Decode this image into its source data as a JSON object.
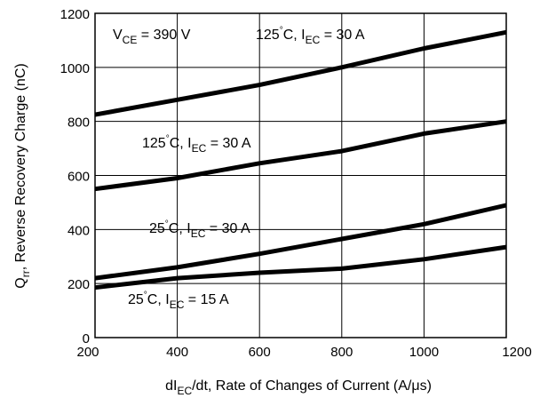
{
  "chart_data": {
    "type": "line",
    "xlabel": {
      "prefix": "dI",
      "sub": "EC",
      "suffix": "/dt, Rate of Changes of Current (A/μs)"
    },
    "ylabel": {
      "prefix": "Q",
      "sub": "rr",
      "suffix": ", Reverse Recovery Charge (nC)"
    },
    "xlim": [
      200,
      1200
    ],
    "ylim": [
      0,
      1200
    ],
    "xticks": [
      200,
      400,
      600,
      800,
      1000,
      1200
    ],
    "yticks": [
      0,
      200,
      400,
      600,
      800,
      1000,
      1200
    ],
    "grid": true,
    "condition": {
      "prefix": "V",
      "sub": "CE",
      "suffix": " = 390 V"
    },
    "series": [
      {
        "label": {
          "temp": "125",
          "deg": "°",
          "unit": "C, I",
          "sub": "EC",
          "value": " = 30 A"
        },
        "x": [
          200,
          400,
          600,
          800,
          1000,
          1200
        ],
        "y": [
          825,
          880,
          935,
          1000,
          1070,
          1130
        ]
      },
      {
        "label": {
          "temp": "125",
          "deg": "°",
          "unit": "C, I",
          "sub": "EC",
          "value": " = 30 A"
        },
        "x": [
          200,
          400,
          600,
          800,
          1000,
          1200
        ],
        "y": [
          550,
          590,
          645,
          690,
          755,
          800
        ]
      },
      {
        "label": {
          "temp": "25",
          "deg": "°",
          "unit": "C, I",
          "sub": "EC",
          "value": " = 30 A"
        },
        "x": [
          200,
          400,
          600,
          800,
          1000,
          1200
        ],
        "y": [
          220,
          260,
          310,
          365,
          420,
          490
        ]
      },
      {
        "label": {
          "temp": "25",
          "deg": "°",
          "unit": "C, I",
          "sub": "EC",
          "value": " = 15 A"
        },
        "x": [
          200,
          400,
          600,
          800,
          1000,
          1200
        ],
        "y": [
          185,
          220,
          240,
          255,
          290,
          335
        ]
      }
    ]
  }
}
